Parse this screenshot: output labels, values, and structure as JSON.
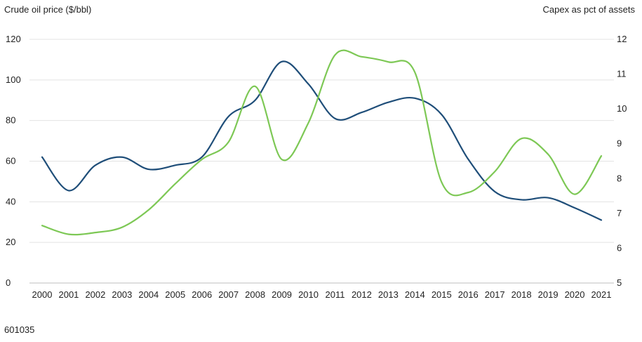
{
  "chart_data": {
    "type": "line",
    "left_axis_title": "Crude oil price ($/bbl)",
    "right_axis_title": "Capex as pct of assets",
    "footer_code": "601035",
    "x": [
      "2000",
      "2001",
      "2002",
      "2003",
      "2004",
      "2005",
      "2006",
      "2007",
      "2008",
      "2009",
      "2010",
      "2011",
      "2012",
      "2013",
      "2014",
      "2015",
      "2016",
      "2017",
      "2018",
      "2019",
      "2020",
      "2021"
    ],
    "y_left": {
      "ylim": [
        0,
        120
      ],
      "ticks": [
        0,
        20,
        40,
        60,
        80,
        100,
        120
      ]
    },
    "y_right": {
      "ylim": [
        5,
        12
      ],
      "ticks": [
        5,
        6,
        7,
        8,
        9,
        10,
        11,
        12
      ]
    },
    "grid": true,
    "series": [
      {
        "axis": "left",
        "color": "#1f4e79",
        "values": [
          62,
          45.5,
          58,
          62,
          56,
          58,
          62,
          82,
          90,
          109,
          98,
          81,
          84,
          89,
          91,
          83,
          61,
          45,
          41,
          42,
          37,
          31
        ]
      },
      {
        "axis": "right",
        "color": "#7dc855",
        "values": [
          6.65,
          6.4,
          6.45,
          6.6,
          7.1,
          7.85,
          8.55,
          9.05,
          10.65,
          8.55,
          9.6,
          11.55,
          11.5,
          11.35,
          11.05,
          7.9,
          7.6,
          8.2,
          9.15,
          8.7,
          7.55,
          8.65
        ]
      }
    ]
  }
}
